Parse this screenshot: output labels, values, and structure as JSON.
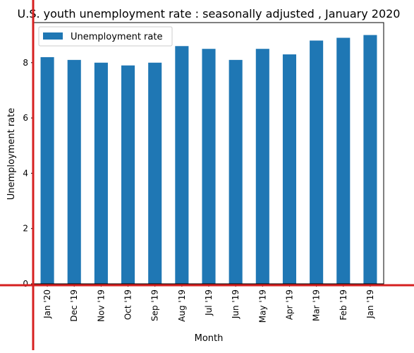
{
  "chart_data": {
    "type": "bar",
    "title": "U.S. youth unemployment rate : seasonally adjusted , January 2020",
    "xlabel": "Month",
    "ylabel": "Unemployment rate",
    "categories": [
      "Jan '20",
      "Dec '19",
      "Nov '19",
      "Oct '19",
      "Sep '19",
      "Aug '19",
      "Jul '19",
      "Jun '19",
      "May '19",
      "Apr '19",
      "Mar '19",
      "Feb '19",
      "Jan '19"
    ],
    "series": [
      {
        "name": "Unemployment rate",
        "values": [
          8.2,
          8.1,
          8.0,
          7.9,
          8.0,
          8.6,
          8.5,
          8.1,
          8.5,
          8.3,
          8.8,
          8.9,
          9.0
        ]
      }
    ],
    "ylim": [
      0,
      9.45
    ],
    "yticks": [
      0,
      2,
      4,
      6,
      8
    ],
    "grid": false,
    "legend_position": "top-left",
    "colors": {
      "bar": "#1f77b4",
      "axis": "#000000",
      "overlay_lines": "#d62020"
    }
  }
}
